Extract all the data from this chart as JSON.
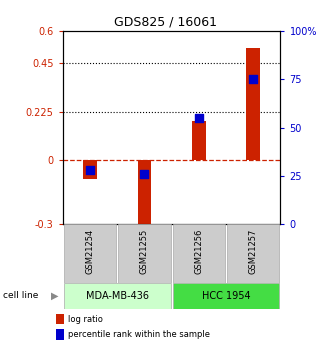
{
  "title": "GDS825 / 16061",
  "samples": [
    "GSM21254",
    "GSM21255",
    "GSM21256",
    "GSM21257"
  ],
  "log_ratio": [
    -0.09,
    -0.32,
    0.18,
    0.52
  ],
  "percentile_rank": [
    28,
    26,
    55,
    75
  ],
  "cell_lines": [
    {
      "label": "MDA-MB-436",
      "samples": [
        0,
        1
      ],
      "color": "#ccffcc"
    },
    {
      "label": "HCC 1954",
      "samples": [
        2,
        3
      ],
      "color": "#44dd44"
    }
  ],
  "ylim_left": [
    -0.3,
    0.6
  ],
  "ylim_right": [
    0,
    100
  ],
  "left_ticks": [
    -0.3,
    0.0,
    0.225,
    0.45,
    0.6
  ],
  "right_ticks": [
    0,
    25,
    50,
    75,
    100
  ],
  "hline_dotted": [
    0.225,
    0.45
  ],
  "hline_dashed": 0.0,
  "bar_color": "#cc2200",
  "dot_color": "#0000cc",
  "bar_width": 0.25,
  "dot_size": 30,
  "cell_line_color_light": "#ccffcc",
  "cell_line_color_dark": "#44dd44",
  "sample_box_color": "#cccccc",
  "title_fontsize": 9,
  "tick_fontsize": 7,
  "sample_fontsize": 6,
  "cell_fontsize": 7,
  "legend_fontsize": 6
}
